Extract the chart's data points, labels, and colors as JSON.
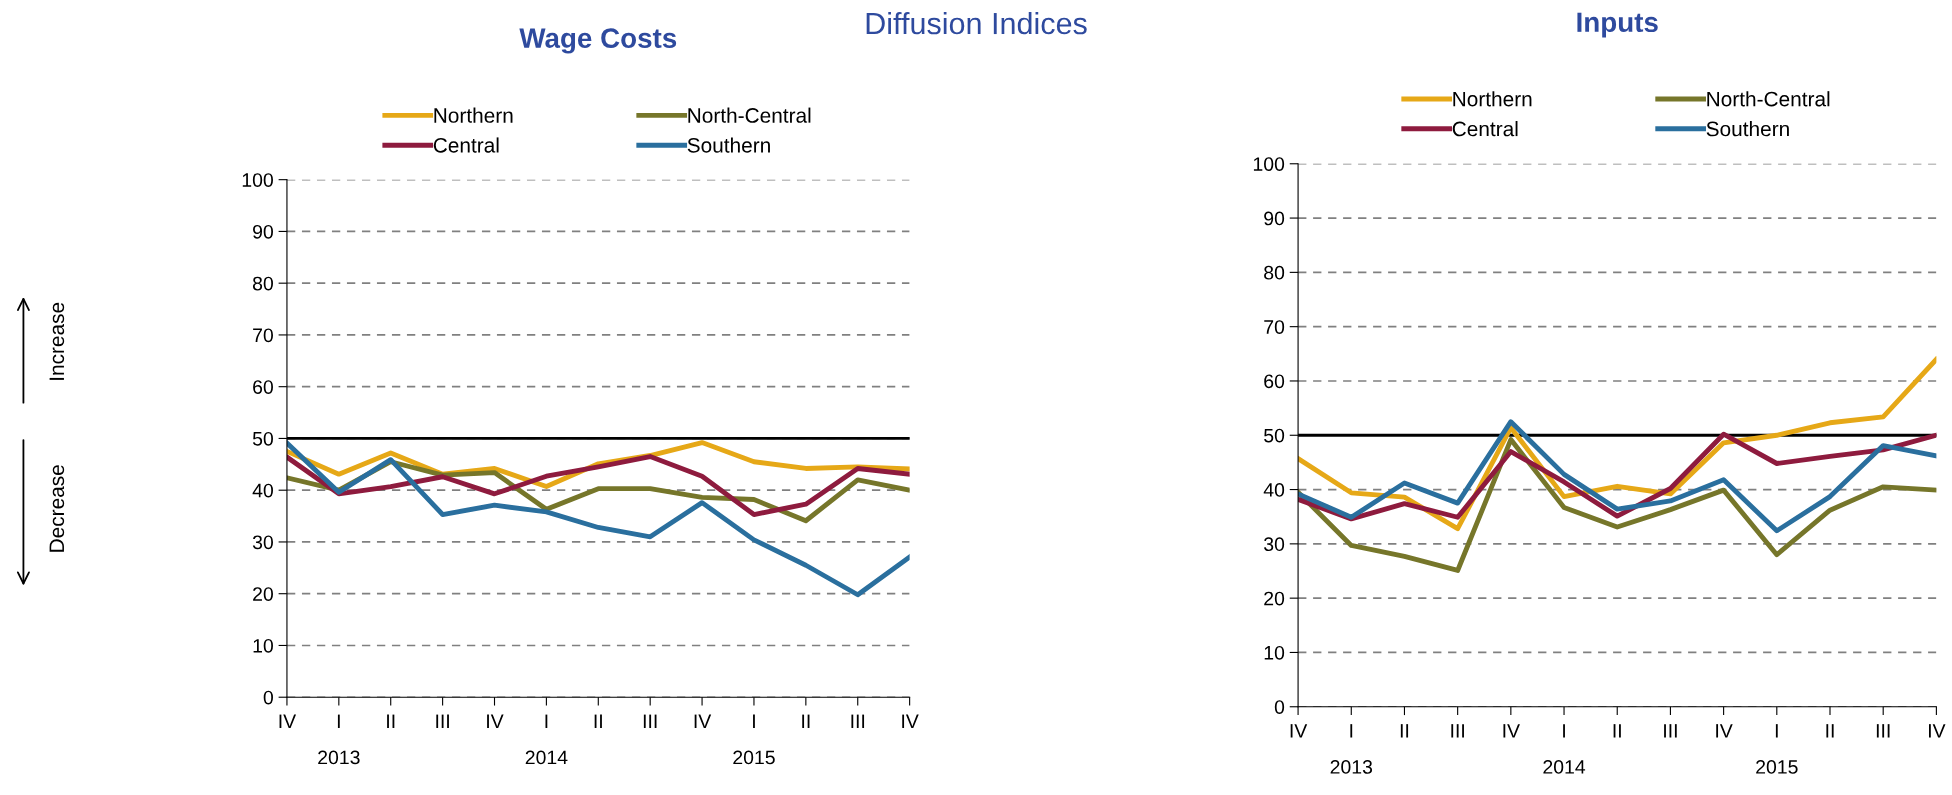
{
  "chart_data": [
    {
      "type": "line",
      "title": "Wage Costs",
      "annotations": [
        "Diffusion Indices",
        "Increase",
        "Decrease",
        "2013",
        "2014",
        "2015"
      ],
      "categories": [
        "IV",
        "I",
        "II",
        "III",
        "IV",
        "I",
        "II",
        "III",
        "IV",
        "I",
        "II",
        "III",
        "IV"
      ],
      "series": [
        {
          "name": "Northern",
          "color": "#e6a817",
          "values": [
            47.5,
            43.1,
            47.2,
            43.1,
            44.2,
            40.7,
            45.1,
            46.7,
            49.2,
            45.5,
            44.2,
            44.5,
            44.1
          ]
        },
        {
          "name": "North-Central",
          "color": "#76762a",
          "values": [
            42.4,
            40,
            45.5,
            42.9,
            43.4,
            36.3,
            40.3,
            40.3,
            38.6,
            38.2,
            34.1,
            42.0,
            40
          ]
        },
        {
          "name": "Central",
          "color": "#8e1b3e",
          "values": [
            46.4,
            39.3,
            40.7,
            42.6,
            39.3,
            42.7,
            44.5,
            46.5,
            42.7,
            35.3,
            37.3,
            44.2,
            43.1
          ]
        },
        {
          "name": "Southern",
          "color": "#2a6f9e",
          "values": [
            49.1,
            39.6,
            45.9,
            35.3,
            37.1,
            35.8,
            32.8,
            31.0,
            37.6,
            30.4,
            25.5,
            19.8,
            27.1
          ]
        }
      ],
      "ylim": [
        0,
        100
      ],
      "yticks": [
        0,
        10,
        20,
        30,
        40,
        50,
        60,
        70,
        80,
        90,
        100
      ],
      "grid": "y",
      "legend": "top",
      "ref_lines": [
        {
          "axis": "y",
          "value": 50,
          "color": "#000000"
        }
      ]
    },
    {
      "type": "line",
      "title": "Inputs",
      "annotations": [
        "2013",
        "2014",
        "2015"
      ],
      "categories": [
        "IV",
        "I",
        "II",
        "III",
        "IV",
        "I",
        "II",
        "III",
        "IV",
        "I",
        "II",
        "III",
        "IV"
      ],
      "series": [
        {
          "name": "Northern",
          "color": "#e6a817",
          "values": [
            45.7,
            39.4,
            38.6,
            32.8,
            51.4,
            38.7,
            40.6,
            39.2,
            48.6,
            50,
            52.3,
            53.4,
            64
          ]
        },
        {
          "name": "North-Central",
          "color": "#76762a",
          "values": [
            39.5,
            29.7,
            27.7,
            25.1,
            49.2,
            36.7,
            33.1,
            36.3,
            39.9,
            28.0,
            36.2,
            40.5,
            39.9
          ]
        },
        {
          "name": "Central",
          "color": "#8e1b3e",
          "values": [
            38.2,
            34.6,
            37.4,
            34.9,
            47.0,
            41.4,
            35.1,
            40.2,
            50.2,
            44.8,
            46.1,
            47.3,
            50
          ]
        },
        {
          "name": "Southern",
          "color": "#2a6f9e",
          "values": [
            39.2,
            34.9,
            41.2,
            37.5,
            52.5,
            42.8,
            36.4,
            37.9,
            41.8,
            32.4,
            38.7,
            48.1,
            46.2
          ]
        }
      ],
      "ylim": [
        0,
        100
      ],
      "yticks": [
        0,
        10,
        20,
        30,
        40,
        50,
        60,
        70,
        80,
        90,
        100
      ],
      "grid": "y",
      "legend": "top",
      "ref_lines": [
        {
          "axis": "y",
          "value": 50,
          "color": "#000000"
        }
      ]
    }
  ]
}
